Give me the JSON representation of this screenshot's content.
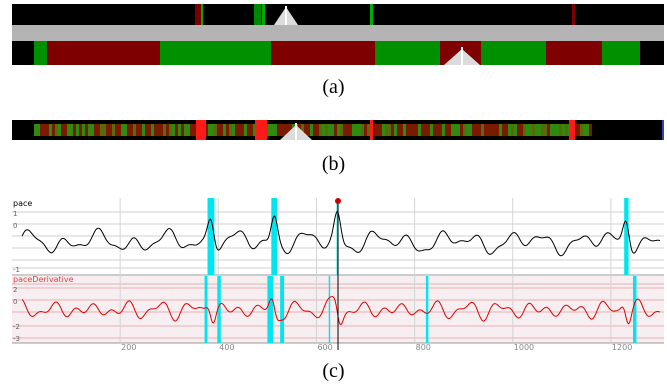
{
  "figure": {
    "captions": {
      "a": "(a)",
      "b": "(b)",
      "c": "(c)"
    },
    "panel_c": {
      "top_label": "pace",
      "bottom_label": "paceDerivative",
      "top_ticks": [
        "1",
        "0",
        "-1"
      ],
      "bottom_ticks": [
        "2",
        "0",
        "-2",
        "-3"
      ],
      "x_ticks": [
        "200",
        "400",
        "600",
        "800",
        "1000",
        "1200"
      ]
    }
  },
  "chart_data": {
    "type": "line",
    "xlim": [
      0,
      1300
    ],
    "x_tick_values": [
      200,
      400,
      600,
      800,
      1000,
      1200
    ],
    "highlight_ranges": [
      [
        378,
        392
      ],
      [
        508,
        520
      ],
      [
        641,
        645
      ],
      [
        1227,
        1236
      ]
    ],
    "highlight_ranges_bottom": [
      [
        372,
        378
      ],
      [
        398,
        405
      ],
      [
        500,
        512
      ],
      [
        526,
        534
      ],
      [
        625,
        628
      ],
      [
        823,
        828
      ],
      [
        1245,
        1252
      ]
    ],
    "series": [
      {
        "name": "pace",
        "color": "#000000"
      },
      {
        "name": "paceDerivative",
        "color": "#e00000"
      }
    ]
  }
}
